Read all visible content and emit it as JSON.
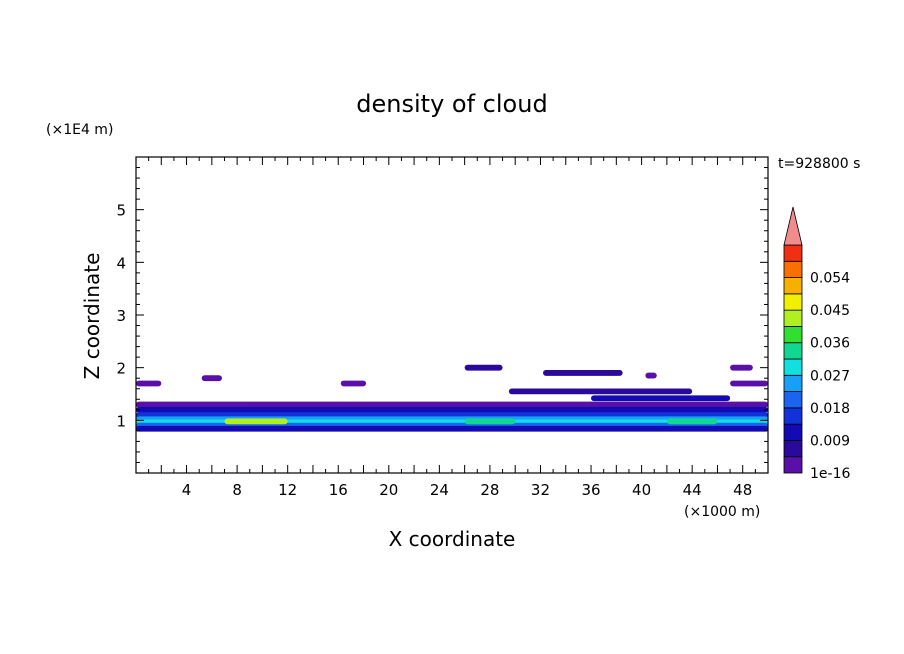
{
  "chart_data": {
    "type": "heatmap",
    "title": "density of cloud",
    "xlabel": "X coordinate",
    "ylabel": "Z coordinate",
    "x_unit": "(×1000 m)",
    "y_unit": "(×1E4 m)",
    "time_label": "t=928800 s",
    "xlim": [
      0,
      50
    ],
    "ylim": [
      0,
      6
    ],
    "x_ticks": [
      4,
      8,
      12,
      16,
      20,
      24,
      28,
      32,
      36,
      40,
      44,
      48
    ],
    "y_ticks": [
      1,
      2,
      3,
      4,
      5
    ],
    "colorbar": {
      "levels": [
        1e-16,
        0.0045,
        0.009,
        0.0135,
        0.018,
        0.0225,
        0.027,
        0.0315,
        0.036,
        0.0405,
        0.045,
        0.0495,
        0.054,
        0.0585
      ],
      "labels": [
        "1e-16",
        "0.009",
        "0.018",
        "0.027",
        "0.036",
        "0.045",
        "0.054"
      ],
      "colors": [
        "#5a0fa8",
        "#2a0a9a",
        "#140ab4",
        "#1032d8",
        "#1a64f0",
        "#18a0f8",
        "#10e0e0",
        "#10d890",
        "#30e030",
        "#b0f020",
        "#f0f000",
        "#f8b000",
        "#f87000",
        "#f03010",
        "#f08c8c"
      ],
      "extend": "max"
    },
    "bands": [
      {
        "z": 1.7,
        "x": [
          0.0,
          2.0
        ],
        "level": 0
      },
      {
        "z": 1.8,
        "x": [
          5.2,
          6.8
        ],
        "level": 0
      },
      {
        "z": 1.7,
        "x": [
          16.2,
          18.2
        ],
        "level": 0
      },
      {
        "z": 2.0,
        "x": [
          26.0,
          29.0
        ],
        "level": 1
      },
      {
        "z": 1.9,
        "x": [
          32.2,
          38.5
        ],
        "level": 1
      },
      {
        "z": 1.85,
        "x": [
          40.3,
          41.2
        ],
        "level": 0
      },
      {
        "z": 2.0,
        "x": [
          47.0,
          48.8
        ],
        "level": 0
      },
      {
        "z": 1.7,
        "x": [
          47.0,
          50.0
        ],
        "level": 0
      },
      {
        "z": 1.55,
        "x": [
          29.5,
          44.0
        ],
        "level": 1
      },
      {
        "z": 1.42,
        "x": [
          36.0,
          47.0
        ],
        "level": 2
      },
      {
        "z": 1.3,
        "x": [
          0.0,
          50.0
        ],
        "level": 0
      },
      {
        "z": 1.2,
        "x": [
          0.0,
          50.0
        ],
        "level": 2
      },
      {
        "z": 1.1,
        "x": [
          0.0,
          50.0
        ],
        "level": 3
      },
      {
        "z": 1.02,
        "x": [
          0.0,
          50.0
        ],
        "level": 5
      },
      {
        "z": 0.96,
        "x": [
          0.0,
          50.0
        ],
        "level": 6
      },
      {
        "z": 0.9,
        "x": [
          0.0,
          50.0
        ],
        "level": 4
      },
      {
        "z": 0.84,
        "x": [
          0.0,
          50.0
        ],
        "level": 2
      },
      {
        "z": 0.98,
        "x": [
          7.0,
          12.0
        ],
        "level": 9
      },
      {
        "z": 0.98,
        "x": [
          42.0,
          46.0
        ],
        "level": 7
      },
      {
        "z": 0.98,
        "x": [
          26.0,
          30.0
        ],
        "level": 7
      }
    ]
  }
}
